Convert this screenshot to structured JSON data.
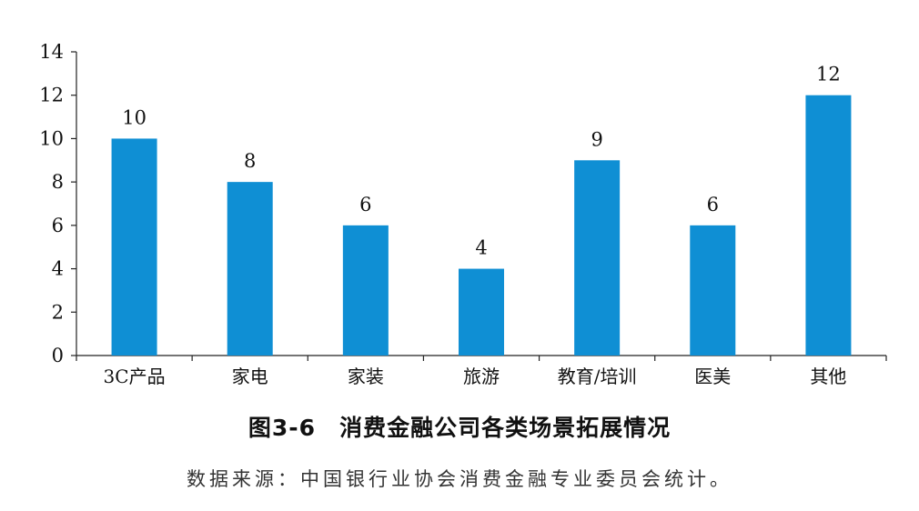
{
  "chart_data": {
    "type": "bar",
    "categories": [
      "3C产品",
      "家电",
      "家装",
      "旅游",
      "教育/培训",
      "医美",
      "其他"
    ],
    "values": [
      10,
      8,
      6,
      4,
      9,
      6,
      12
    ],
    "ylim": [
      0,
      14
    ],
    "yticks": [
      0,
      2,
      4,
      6,
      8,
      10,
      12,
      14
    ],
    "bar_color": "#0f8fd4",
    "grid": false,
    "data_labels": true
  },
  "caption": "图3-6　消费金融公司各类场景拓展情况",
  "source": "数据来源：中国银行业协会消费金融专业委员会统计。"
}
